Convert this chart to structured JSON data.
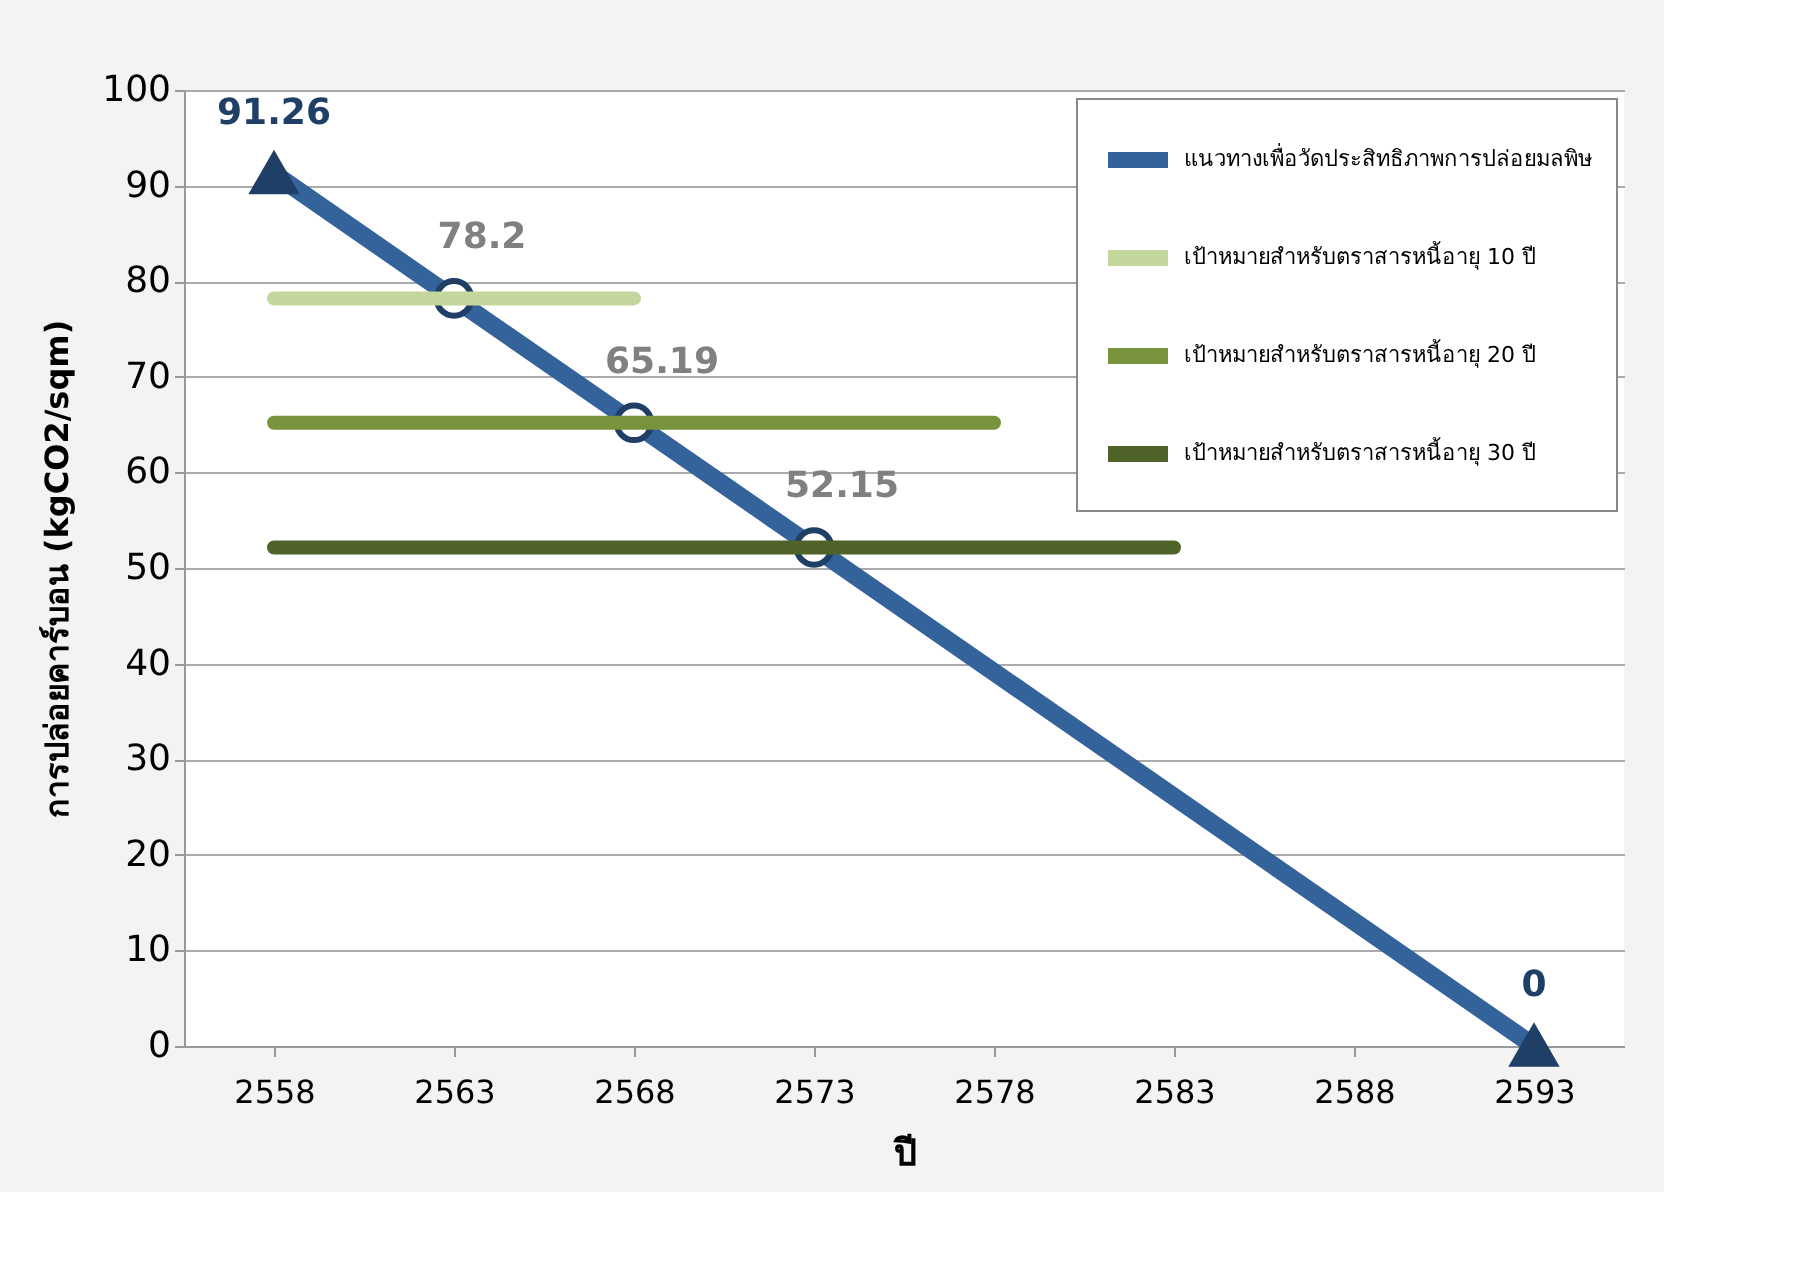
{
  "chart_data": {
    "type": "line",
    "xlabel": "ปี",
    "ylabel": "การปล่อยคาร์บอน (kgCO2/sqm)",
    "xlim": [
      2555.5,
      2595.5
    ],
    "xticks": [
      2558,
      2563,
      2568,
      2573,
      2578,
      2583,
      2588,
      2593
    ],
    "ylim": [
      0,
      100
    ],
    "yticks": [
      0,
      10,
      20,
      30,
      40,
      50,
      60,
      70,
      80,
      90,
      100
    ],
    "grid": "y",
    "legend": "top right",
    "series": [
      {
        "name": "แนวทางเพื่อวัดประสิทธิภาพการปล่อยมลพิษ",
        "color": "#34629a",
        "marker": "none",
        "x": [
          2558,
          2563,
          2568,
          2573,
          2593
        ],
        "values": [
          91.26,
          78.2,
          65.19,
          52.15,
          0
        ]
      },
      {
        "type": "scatter",
        "marker": "triangle",
        "color": "#1f3f66",
        "x": [
          2558,
          2593
        ],
        "values": [
          91.26,
          0
        ],
        "value_labels": [
          "91.26",
          "0"
        ]
      },
      {
        "type": "scatter",
        "marker": "circle",
        "color": "#ffffff",
        "x": [
          2563,
          2568,
          2573
        ],
        "values": [
          78.2,
          65.19,
          52.15
        ],
        "value_labels": [
          "78.2",
          "65.19",
          "52.15"
        ]
      },
      {
        "name": "เป้าหมายสำหรับตราสารหนี้อายุ 10 ปี",
        "color": "#c3d69b",
        "marker": "none",
        "x": [
          2558,
          2568
        ],
        "values": [
          78.2,
          78.2
        ]
      },
      {
        "name": "เป้าหมายสำหรับตราสารหนี้อายุ 20 ปี",
        "color": "#77933c",
        "marker": "none",
        "x": [
          2558,
          2578
        ],
        "values": [
          65.19,
          65.19
        ]
      },
      {
        "name": "เป้าหมายสำหรับตราสารหนี้อายุ 30 ปี",
        "color": "#4f6228",
        "marker": "none",
        "x": [
          2558,
          2583
        ],
        "values": [
          52.15,
          52.15
        ]
      }
    ]
  }
}
